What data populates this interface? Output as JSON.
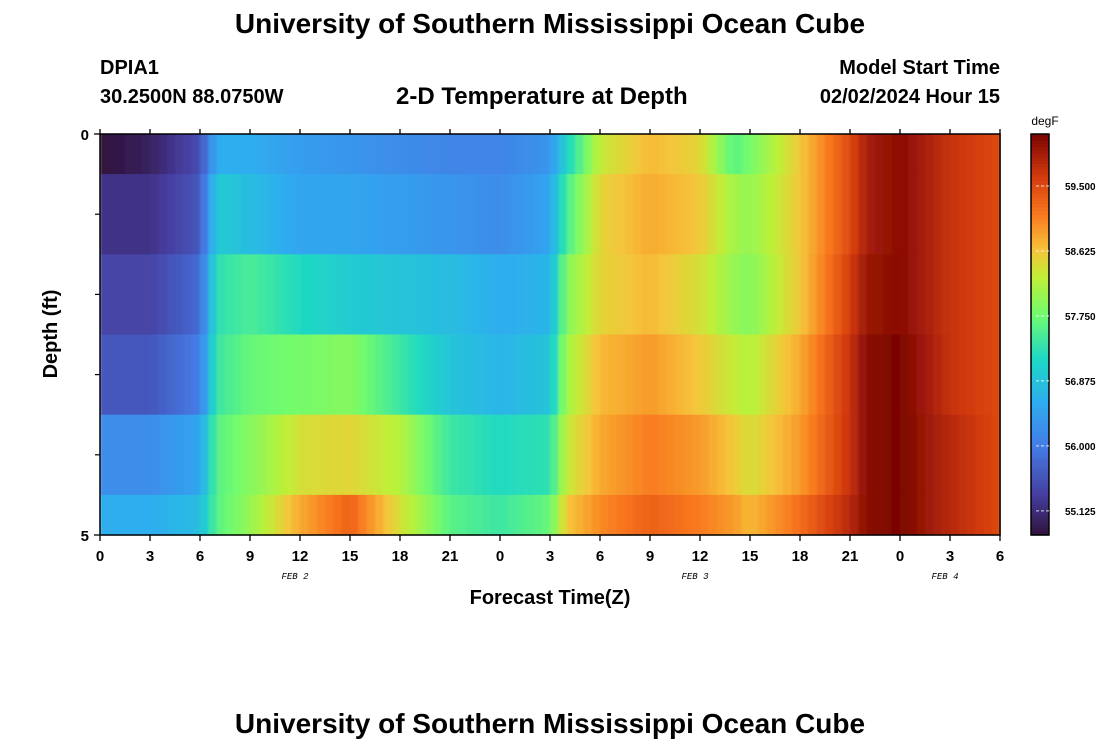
{
  "page": {
    "title": "University of Southern Mississippi Ocean Cube",
    "bottom_title": "University of Southern Mississippi Ocean Cube",
    "station_id": "DPIA1",
    "station_coords": "30.2500N  88.0750W",
    "plot_subtitle": "2-D Temperature at Depth",
    "model_label": "Model Start Time",
    "model_time": "02/02/2024 Hour 15"
  },
  "chart_data": {
    "type": "heatmap",
    "title": "2-D Temperature at Depth",
    "xlabel": "Forecast Time(Z)",
    "ylabel": "Depth (ft)",
    "unit": "degF",
    "x_tick_labels": [
      "0",
      "3",
      "6",
      "9",
      "12",
      "15",
      "18",
      "21",
      "0",
      "3",
      "6",
      "9",
      "12",
      "15",
      "18",
      "21",
      "0",
      "3",
      "6"
    ],
    "x_date_labels": [
      {
        "label": "FEB 2",
        "hour_index": 24
      },
      {
        "label": "FEB 3",
        "hour_index": 72
      },
      {
        "label": "FEB 4",
        "hour_index": 120
      }
    ],
    "x_hours_per_tick": 3,
    "x_range_hours": [
      0,
      54
    ],
    "y_tick_labels": [
      "0",
      "5"
    ],
    "ylim": [
      0,
      5
    ],
    "y_minor_ticks": [
      1,
      2,
      3,
      4
    ],
    "colorbar": {
      "label": "degF",
      "min": 54.8,
      "max": 60.2,
      "ticks": [
        55.125,
        56.0,
        56.875,
        57.75,
        58.625,
        59.5
      ],
      "tick_labels": [
        "55.125",
        "56.000",
        "56.875",
        "57.750",
        "58.625",
        "59.500"
      ]
    },
    "row_depth_ranges_ft": [
      [
        0,
        0.5
      ],
      [
        0.5,
        1.5
      ],
      [
        1.5,
        2.5
      ],
      [
        2.5,
        3.5
      ],
      [
        3.5,
        4.5
      ],
      [
        4.5,
        5
      ]
    ],
    "key_hours": [
      0,
      3,
      6,
      7,
      9,
      12,
      15,
      18,
      21,
      24,
      27,
      28,
      30,
      33,
      36,
      38,
      39,
      42,
      45,
      46,
      48,
      51,
      54
    ],
    "values_by_row": [
      [
        54.8,
        55.0,
        55.5,
        56.6,
        56.6,
        56.4,
        56.3,
        56.2,
        56.1,
        56.1,
        56.3,
        57.1,
        58.3,
        58.7,
        58.5,
        57.6,
        57.8,
        58.6,
        59.5,
        59.9,
        60.1,
        59.7,
        59.5
      ],
      [
        55.2,
        55.2,
        55.6,
        57.0,
        56.8,
        56.5,
        56.5,
        56.4,
        56.3,
        56.2,
        56.5,
        57.5,
        58.5,
        58.8,
        58.6,
        58.1,
        58.0,
        58.6,
        59.5,
        59.9,
        60.1,
        59.7,
        59.5
      ],
      [
        55.4,
        55.4,
        55.8,
        57.3,
        57.5,
        57.2,
        57.0,
        56.9,
        56.8,
        56.6,
        56.7,
        57.9,
        58.5,
        58.7,
        58.4,
        58.0,
        57.9,
        58.6,
        59.6,
        60.0,
        60.1,
        59.7,
        59.5
      ],
      [
        55.6,
        55.6,
        56.0,
        57.4,
        57.7,
        57.8,
        57.9,
        57.4,
        56.9,
        56.7,
        56.9,
        58.1,
        58.7,
        58.9,
        58.6,
        58.3,
        58.2,
        58.8,
        59.7,
        60.1,
        60.2,
        59.7,
        59.5
      ],
      [
        56.2,
        56.2,
        56.5,
        57.6,
        57.9,
        58.4,
        58.5,
        58.2,
        57.4,
        57.2,
        57.3,
        58.3,
        58.8,
        59.1,
        58.9,
        58.6,
        58.4,
        58.9,
        59.7,
        60.1,
        60.2,
        59.8,
        59.5
      ],
      [
        56.6,
        56.6,
        56.8,
        57.6,
        58.0,
        58.8,
        59.3,
        58.4,
        57.6,
        57.4,
        57.7,
        58.6,
        59.0,
        59.3,
        59.1,
        58.9,
        58.7,
        59.2,
        59.8,
        60.1,
        60.2,
        59.8,
        59.5
      ]
    ]
  }
}
